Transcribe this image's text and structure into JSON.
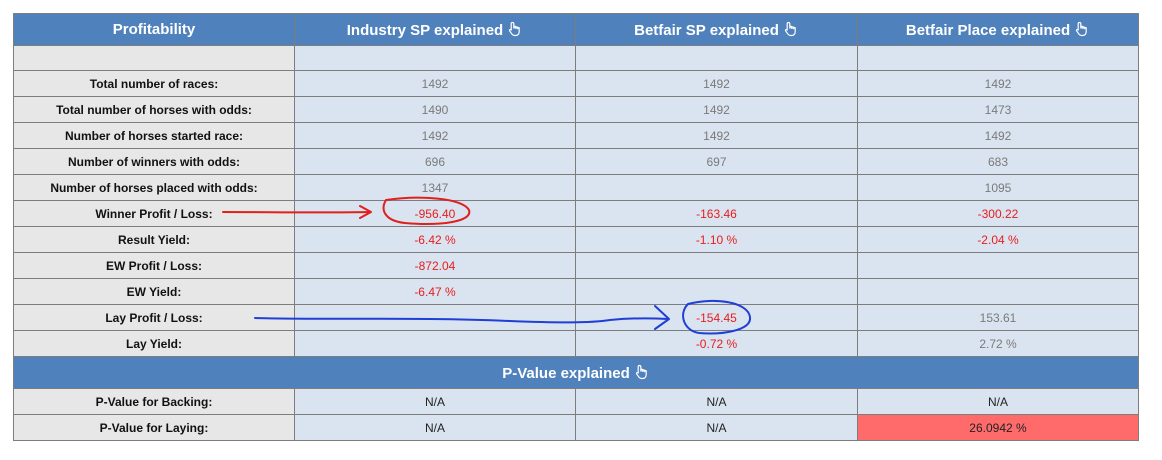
{
  "header": {
    "profitability": "Profitability",
    "industry_sp": "Industry SP explained",
    "betfair_sp": "Betfair SP explained",
    "betfair_place": "Betfair Place explained"
  },
  "rows": [
    {
      "label": "Total number of races:",
      "industry": "1492",
      "betfair": "1492",
      "place": "1492"
    },
    {
      "label": "Total number of horses with odds:",
      "industry": "1490",
      "betfair": "1492",
      "place": "1473"
    },
    {
      "label": "Number of horses started race:",
      "industry": "1492",
      "betfair": "1492",
      "place": "1492"
    },
    {
      "label": "Number of winners with odds:",
      "industry": "696",
      "betfair": "697",
      "place": "683"
    },
    {
      "label": "Number of horses placed with odds:",
      "industry": "1347",
      "betfair": "",
      "place": "1095"
    },
    {
      "label": "Winner Profit / Loss:",
      "industry": "-956.40",
      "betfair": "-163.46",
      "place": "-300.22"
    },
    {
      "label": "Result Yield:",
      "industry": "-6.42 %",
      "betfair": "-1.10 %",
      "place": "-2.04 %"
    },
    {
      "label": "EW Profit / Loss:",
      "industry": "-872.04",
      "betfair": "",
      "place": ""
    },
    {
      "label": "EW Yield:",
      "industry": "-6.47 %",
      "betfair": "",
      "place": ""
    },
    {
      "label": "Lay Profit / Loss:",
      "industry": "",
      "betfair": "-154.45",
      "place": "153.61"
    },
    {
      "label": "Lay Yield:",
      "industry": "",
      "betfair": "-0.72 %",
      "place": "2.72 %"
    }
  ],
  "pvalue": {
    "title": "P-Value explained",
    "rows": [
      {
        "label": "P-Value for Backing:",
        "industry": "N/A",
        "betfair": "N/A",
        "place": "N/A"
      },
      {
        "label": "P-Value for Laying:",
        "industry": "N/A",
        "betfair": "N/A",
        "place": "26.0942 %"
      }
    ]
  },
  "icons": {
    "hand": "pointing-hand-icon"
  },
  "colors": {
    "header_bg": "#4f81bd",
    "label_bg": "#e7e7e7",
    "value_bg": "#dae3f0",
    "negative": "#e81d1d",
    "alert_bg": "#ff6b6b",
    "annotation_red": "#e0201b",
    "annotation_blue": "#1f3fd6"
  }
}
